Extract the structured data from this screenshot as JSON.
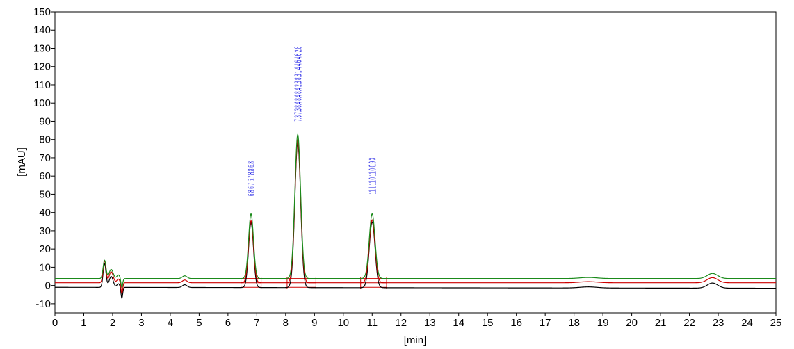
{
  "chart_data": {
    "type": "line",
    "xlabel": "[min]",
    "ylabel": "[mAU]",
    "xlim": [
      0,
      25
    ],
    "ylim": [
      -15,
      150
    ],
    "x_ticks": [
      "0",
      "1",
      "2",
      "3",
      "4",
      "5",
      "6",
      "7",
      "8",
      "9",
      "10",
      "11",
      "12",
      "13",
      "14",
      "15",
      "16",
      "17",
      "18",
      "19",
      "20",
      "21",
      "22",
      "23",
      "24",
      "25"
    ],
    "y_ticks": [
      "-10",
      "0",
      "10",
      "20",
      "30",
      "40",
      "50",
      "60",
      "70",
      "80",
      "90",
      "100",
      "110",
      "120",
      "130",
      "140",
      "150"
    ],
    "grid": false,
    "legend": "none",
    "series": [
      {
        "color": "#000000",
        "baseline": [
          [
            0,
            -1.0
          ],
          [
            25,
            -1.5
          ]
        ],
        "peaks": [
          {
            "center": 1.72,
            "height": 13,
            "sigma": 0.05
          },
          {
            "center": 1.95,
            "height": 6,
            "sigma": 0.07
          },
          {
            "center": 2.2,
            "height": 2,
            "sigma": 0.05
          },
          {
            "center": 2.32,
            "height": -6,
            "sigma": 0.03
          },
          {
            "center": 4.5,
            "height": 1.5,
            "sigma": 0.08
          },
          {
            "center": 6.8,
            "height": 35.5,
            "sigma": 0.085
          },
          {
            "center": 8.42,
            "height": 79.5,
            "sigma": 0.1
          },
          {
            "center": 11.0,
            "height": 36,
            "sigma": 0.1
          },
          {
            "center": 18.5,
            "height": 0.6,
            "sigma": 0.3
          },
          {
            "center": 22.8,
            "height": 2.8,
            "sigma": 0.18
          }
        ]
      },
      {
        "color": "#cc0000",
        "baseline": [
          [
            0,
            1.5
          ],
          [
            25,
            1.5
          ]
        ],
        "peaks": [
          {
            "center": 1.72,
            "height": 12,
            "sigma": 0.05
          },
          {
            "center": 1.95,
            "height": 6,
            "sigma": 0.07
          },
          {
            "center": 2.2,
            "height": 2,
            "sigma": 0.05
          },
          {
            "center": 2.32,
            "height": -6,
            "sigma": 0.03
          },
          {
            "center": 4.5,
            "height": 1.5,
            "sigma": 0.08
          },
          {
            "center": 6.8,
            "height": 34,
            "sigma": 0.085
          },
          {
            "center": 8.42,
            "height": 78.5,
            "sigma": 0.1
          },
          {
            "center": 11.0,
            "height": 34.5,
            "sigma": 0.1
          },
          {
            "center": 18.5,
            "height": 0.6,
            "sigma": 0.3
          },
          {
            "center": 22.8,
            "height": 2.8,
            "sigma": 0.18
          }
        ]
      },
      {
        "color": "#1a8a1a",
        "baseline": [
          [
            0,
            3.8
          ],
          [
            25,
            3.8
          ]
        ],
        "peaks": [
          {
            "center": 1.72,
            "height": 10,
            "sigma": 0.05
          },
          {
            "center": 1.95,
            "height": 5,
            "sigma": 0.07
          },
          {
            "center": 2.2,
            "height": 2,
            "sigma": 0.05
          },
          {
            "center": 2.32,
            "height": -5,
            "sigma": 0.03
          },
          {
            "center": 4.5,
            "height": 1.5,
            "sigma": 0.08
          },
          {
            "center": 6.8,
            "height": 35.5,
            "sigma": 0.085
          },
          {
            "center": 8.42,
            "height": 79,
            "sigma": 0.1
          },
          {
            "center": 11.0,
            "height": 35.5,
            "sigma": 0.1
          },
          {
            "center": 18.5,
            "height": 0.6,
            "sigma": 0.3
          },
          {
            "center": 22.8,
            "height": 2.8,
            "sigma": 0.18
          }
        ]
      }
    ],
    "peak_labels": [
      {
        "x": 6.8,
        "y_from": 49,
        "y_to": 68,
        "text": "6.8 6.7 6.7 8.8 6.8",
        "color": "#2323e6"
      },
      {
        "x": 8.42,
        "y_from": 90,
        "y_to": 131,
        "text": "7.3 7.3 8.4 8.4 8.4 2.8 8.8 1.4 4.6 4.6 2.8",
        "color": "#2323e6"
      },
      {
        "x": 11.0,
        "y_from": 50,
        "y_to": 70,
        "text": "11.1 11.0 11.0 0.9 3",
        "color": "#2323e6"
      }
    ],
    "integration_marks": {
      "color": "#cc0000",
      "baselines": [
        {
          "from": 6.45,
          "to": 7.15,
          "levels": [
            -1.0,
            1.5,
            3.8
          ]
        },
        {
          "from": 8.05,
          "to": 9.05,
          "levels": [
            -1.0,
            1.5,
            3.8
          ]
        },
        {
          "from": 10.6,
          "to": 11.5,
          "levels": [
            -1.0,
            1.5,
            3.8
          ]
        }
      ]
    }
  }
}
